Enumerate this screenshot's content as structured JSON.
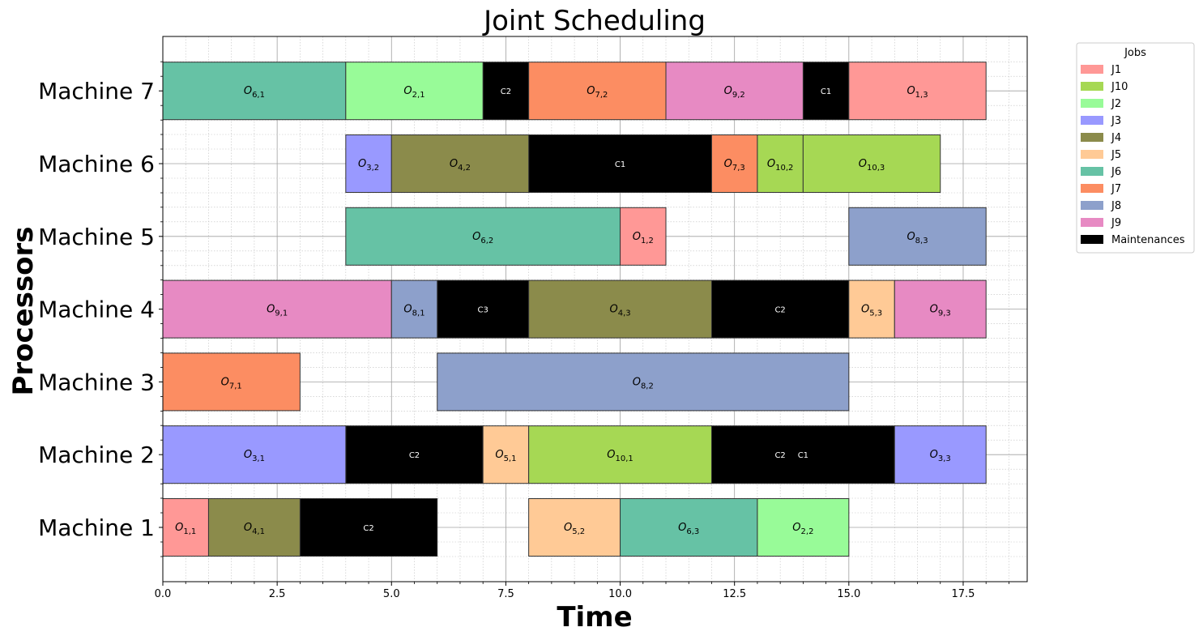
{
  "chart_data": {
    "type": "gantt",
    "title": "Joint Scheduling",
    "xlabel": "Time",
    "ylabel": "Processors",
    "xlim": [
      0,
      18.9
    ],
    "xticks": [
      0.0,
      2.5,
      5.0,
      7.5,
      10.0,
      12.5,
      15.0,
      17.5
    ],
    "xtick_labels": [
      "0.0",
      "2.5",
      "5.0",
      "7.5",
      "10.0",
      "12.5",
      "15.0",
      "17.5"
    ],
    "grid": true,
    "legend": {
      "title": "Jobs",
      "placement": "outside-top-right",
      "entries": [
        {
          "label": "J1",
          "color": "#ff9896"
        },
        {
          "label": "J10",
          "color": "#a6d854"
        },
        {
          "label": "J2",
          "color": "#98fb98"
        },
        {
          "label": "J3",
          "color": "#9999ff"
        },
        {
          "label": "J4",
          "color": "#8b8b4b"
        },
        {
          "label": "J5",
          "color": "#ffca96"
        },
        {
          "label": "J6",
          "color": "#66c2a5"
        },
        {
          "label": "J7",
          "color": "#fc8d62"
        },
        {
          "label": "J8",
          "color": "#8da0cb"
        },
        {
          "label": "J9",
          "color": "#e78ac3"
        },
        {
          "label": "Maintenances",
          "color": "#000000"
        }
      ]
    },
    "machines": [
      "Machine 1",
      "Machine 2",
      "Machine 3",
      "Machine 4",
      "Machine 5",
      "Machine 6",
      "Machine 7"
    ],
    "job_colors": {
      "J1": "#ff9896",
      "J2": "#98fb98",
      "J3": "#9999ff",
      "J4": "#8b8b4b",
      "J5": "#ffca96",
      "J6": "#66c2a5",
      "J7": "#fc8d62",
      "J8": "#8da0cb",
      "J9": "#e78ac3",
      "J10": "#a6d854"
    },
    "operations": [
      {
        "machine": 1,
        "job": "J1",
        "op": "1,1",
        "start": 0,
        "end": 1
      },
      {
        "machine": 1,
        "job": "J4",
        "op": "4,1",
        "start": 1,
        "end": 3
      },
      {
        "machine": 1,
        "job": "J5",
        "op": "5,2",
        "start": 8,
        "end": 10
      },
      {
        "machine": 1,
        "job": "J6",
        "op": "6,3",
        "start": 10,
        "end": 13
      },
      {
        "machine": 1,
        "job": "J2",
        "op": "2,2",
        "start": 13,
        "end": 15
      },
      {
        "machine": 2,
        "job": "J3",
        "op": "3,1",
        "start": 0,
        "end": 4
      },
      {
        "machine": 2,
        "job": "J5",
        "op": "5,1",
        "start": 7,
        "end": 8
      },
      {
        "machine": 2,
        "job": "J10",
        "op": "10,1",
        "start": 8,
        "end": 12
      },
      {
        "machine": 2,
        "job": "J3",
        "op": "3,3",
        "start": 16,
        "end": 18
      },
      {
        "machine": 3,
        "job": "J7",
        "op": "7,1",
        "start": 0,
        "end": 3
      },
      {
        "machine": 3,
        "job": "J8",
        "op": "8,2",
        "start": 6,
        "end": 15
      },
      {
        "machine": 4,
        "job": "J9",
        "op": "9,1",
        "start": 0,
        "end": 5
      },
      {
        "machine": 4,
        "job": "J8",
        "op": "8,1",
        "start": 5,
        "end": 6
      },
      {
        "machine": 4,
        "job": "J4",
        "op": "4,3",
        "start": 8,
        "end": 12
      },
      {
        "machine": 4,
        "job": "J5",
        "op": "5,3",
        "start": 15,
        "end": 16
      },
      {
        "machine": 4,
        "job": "J9",
        "op": "9,3",
        "start": 16,
        "end": 18
      },
      {
        "machine": 5,
        "job": "J6",
        "op": "6,2",
        "start": 4,
        "end": 10
      },
      {
        "machine": 5,
        "job": "J1",
        "op": "1,2",
        "start": 10,
        "end": 11
      },
      {
        "machine": 5,
        "job": "J8",
        "op": "8,3",
        "start": 15,
        "end": 18
      },
      {
        "machine": 6,
        "job": "J3",
        "op": "3,2",
        "start": 4,
        "end": 5
      },
      {
        "machine": 6,
        "job": "J4",
        "op": "4,2",
        "start": 5,
        "end": 8
      },
      {
        "machine": 6,
        "job": "J7",
        "op": "7,3",
        "start": 12,
        "end": 13
      },
      {
        "machine": 6,
        "job": "J10",
        "op": "10,2",
        "start": 13,
        "end": 14
      },
      {
        "machine": 6,
        "job": "J10",
        "op": "10,3",
        "start": 14,
        "end": 17
      },
      {
        "machine": 7,
        "job": "J6",
        "op": "6,1",
        "start": 0,
        "end": 4
      },
      {
        "machine": 7,
        "job": "J2",
        "op": "2,1",
        "start": 4,
        "end": 7
      },
      {
        "machine": 7,
        "job": "J7",
        "op": "7,2",
        "start": 8,
        "end": 11
      },
      {
        "machine": 7,
        "job": "J9",
        "op": "9,2",
        "start": 11,
        "end": 14
      },
      {
        "machine": 7,
        "job": "J1",
        "op": "1,3",
        "start": 15,
        "end": 18
      }
    ],
    "maintenances": [
      {
        "machine": 1,
        "start": 3,
        "end": 6,
        "labels": [
          {
            "text": "C2",
            "x": 4.5
          }
        ]
      },
      {
        "machine": 2,
        "start": 4,
        "end": 7,
        "labels": [
          {
            "text": "C2",
            "x": 5.5
          }
        ]
      },
      {
        "machine": 2,
        "start": 12,
        "end": 16,
        "labels": [
          {
            "text": "C2",
            "x": 13.5
          },
          {
            "text": "C1",
            "x": 14.0
          }
        ]
      },
      {
        "machine": 4,
        "start": 6,
        "end": 8,
        "labels": [
          {
            "text": "C3",
            "x": 7.0
          }
        ]
      },
      {
        "machine": 4,
        "start": 12,
        "end": 15,
        "labels": [
          {
            "text": "C2",
            "x": 13.5
          }
        ]
      },
      {
        "machine": 6,
        "start": 8,
        "end": 12,
        "labels": [
          {
            "text": "C1",
            "x": 10.0
          }
        ]
      },
      {
        "machine": 7,
        "start": 7,
        "end": 8,
        "labels": [
          {
            "text": "C2",
            "x": 7.5
          }
        ]
      },
      {
        "machine": 7,
        "start": 14,
        "end": 15,
        "labels": [
          {
            "text": "C1",
            "x": 14.5
          }
        ]
      }
    ]
  }
}
